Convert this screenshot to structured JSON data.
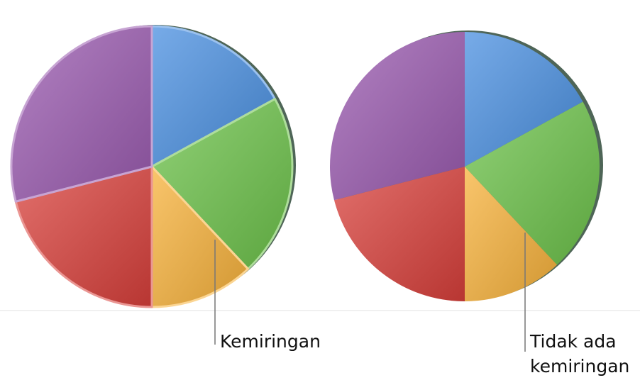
{
  "chart_data": [
    {
      "type": "pie",
      "values": [
        17,
        21,
        12,
        21,
        29
      ],
      "colors": [
        "#4a8fe0",
        "#6cc24a",
        "#f7b23b",
        "#d8403b",
        "#9a5aaf"
      ],
      "bevel": true,
      "annotation": "Kemiringan"
    },
    {
      "type": "pie",
      "values": [
        17,
        21,
        12,
        21,
        29
      ],
      "colors": [
        "#4a8fe0",
        "#6cc24a",
        "#f7b23b",
        "#d8403b",
        "#9a5aaf"
      ],
      "bevel": false,
      "annotation": "Tidak ada kemiringan"
    }
  ]
}
